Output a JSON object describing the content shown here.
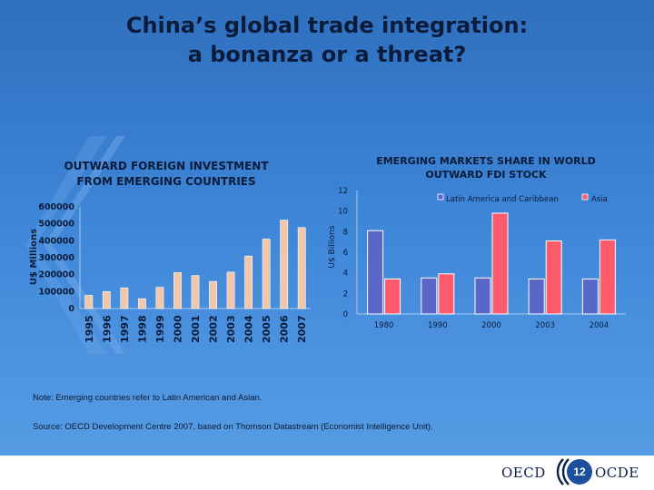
{
  "slide": {
    "title_line1": "China’s global trade integration:",
    "title_line2": "a bonanza or a threat?",
    "note": "Note: Emerging countries refer to Latin American and Asian.",
    "source": "Source: OECD Development Centre 2007, based on Thomson Datastream (Economist Intelligence Unit).",
    "page_number": "12",
    "footer_left": "OECD",
    "footer_right": "OCDE",
    "background_color": "#3e86d8"
  },
  "chart_data": [
    {
      "type": "bar",
      "title": "OUTWARD FOREIGN INVESTMENT FROM EMERGING COUNTRIES",
      "title_line1": "OUTWARD FOREIGN INVESTMENT",
      "title_line2": "FROM EMERGING COUNTRIES",
      "ylabel": "U$ Millions",
      "xlabel": "",
      "ylim": [
        0,
        600000
      ],
      "yticks": [
        "0",
        "100000",
        "200000",
        "300000",
        "400000",
        "500000",
        "600000"
      ],
      "categories": [
        "1995",
        "1996",
        "1997",
        "1998",
        "1999",
        "2000",
        "2001",
        "2002",
        "2003",
        "2004",
        "2005",
        "2006",
        "2007"
      ],
      "values": [
        78000,
        100000,
        122000,
        58000,
        125000,
        212000,
        195000,
        160000,
        215000,
        310000,
        410000,
        522000,
        478000
      ],
      "bar_color": "#f2c6a8",
      "grid": false
    },
    {
      "type": "bar",
      "title": "EMERGING MARKETS SHARE IN WORLD OUTWARD FDI STOCK",
      "title_line1": "EMERGING MARKETS SHARE IN WORLD",
      "title_line2": "OUTWARD FDI STOCK",
      "ylabel": "U$ Billions",
      "xlabel": "",
      "ylim": [
        0,
        12
      ],
      "yticks": [
        "0",
        "2",
        "4",
        "6",
        "8",
        "10",
        "12"
      ],
      "categories": [
        "1980",
        "1990",
        "2000",
        "2003",
        "2004"
      ],
      "series": [
        {
          "name": "Latin America and Caribbean",
          "values": [
            8.1,
            3.5,
            3.5,
            3.4,
            3.4
          ],
          "color": "#5a67c8"
        },
        {
          "name": "Asia",
          "values": [
            3.4,
            3.9,
            9.8,
            7.1,
            7.2
          ],
          "color": "#ff5b6b"
        }
      ],
      "legend": "top-right",
      "grid": false
    }
  ]
}
